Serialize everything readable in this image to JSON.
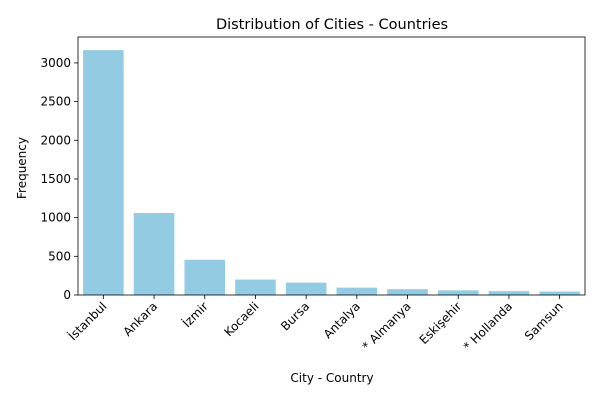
{
  "chart_data": {
    "type": "bar",
    "title": "Distribution of Cities - Countries",
    "xlabel": "City - Country",
    "ylabel": "Frequency",
    "categories": [
      "İstanbul",
      "Ankara",
      "İzmir",
      "Kocaeli",
      "Bursa",
      "Antalya",
      "* Almanya",
      "Eskişehir",
      "* Hollanda",
      "Samsun"
    ],
    "values": [
      3165,
      1060,
      455,
      200,
      160,
      95,
      75,
      60,
      50,
      45
    ],
    "ylim": [
      0,
      3335
    ],
    "yticks": [
      0,
      500,
      1000,
      1500,
      2000,
      2500,
      3000
    ],
    "bar_color": "#92cbe2",
    "grid": false,
    "legend": "none"
  }
}
